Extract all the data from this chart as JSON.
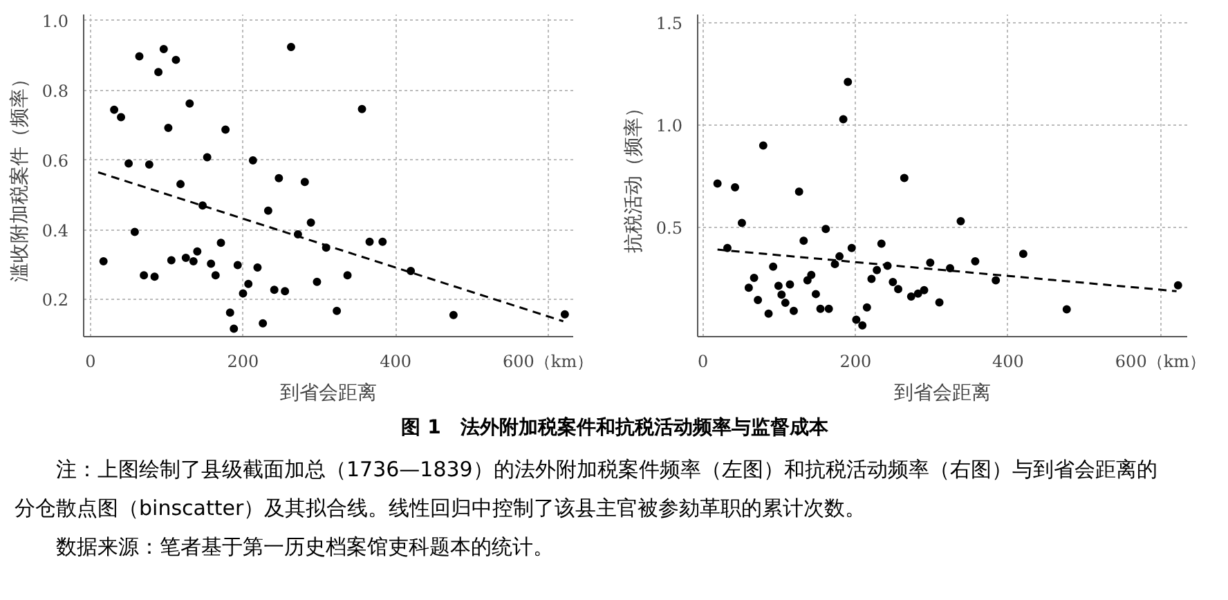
{
  "chart_data": [
    {
      "type": "scatter",
      "xlabel": "到省会距离",
      "ylabel": "滥收附加税案件（频率）",
      "xlim": [
        -9,
        633
      ],
      "ylim": [
        0.094,
        1.017
      ],
      "xticks": [
        0,
        200,
        400,
        {
          "value": 600,
          "label": "600（km）"
        }
      ],
      "yticks": [
        0.2,
        0.4,
        0.6,
        0.8,
        {
          "value": 1.0,
          "label": "1.0"
        }
      ],
      "grid": true,
      "series": [
        {
          "color": "#000000",
          "marker": "circle",
          "x": [
            17,
            31,
            40,
            50,
            58,
            64,
            70,
            77,
            84,
            89,
            96,
            102,
            106,
            112,
            118,
            125,
            130,
            135,
            140,
            147,
            153,
            158,
            164,
            171,
            177,
            183,
            188,
            193,
            200,
            207,
            213,
            219,
            226,
            233,
            241,
            247,
            255,
            263,
            272,
            281,
            289,
            297,
            309,
            323,
            337,
            356,
            366,
            383,
            420,
            476,
            622
          ],
          "values": [
            0.31,
            0.744,
            0.723,
            0.59,
            0.394,
            0.897,
            0.27,
            0.587,
            0.266,
            0.852,
            0.918,
            0.692,
            0.313,
            0.887,
            0.531,
            0.32,
            0.762,
            0.31,
            0.338,
            0.47,
            0.608,
            0.303,
            0.27,
            0.363,
            0.687,
            0.163,
            0.117,
            0.299,
            0.218,
            0.245,
            0.599,
            0.292,
            0.132,
            0.455,
            0.228,
            0.548,
            0.224,
            0.924,
            0.387,
            0.537,
            0.421,
            0.251,
            0.349,
            0.168,
            0.27,
            0.746,
            0.366,
            0.366,
            0.282,
            0.156,
            0.158
          ]
        },
        {
          "type": "line",
          "line_style": "dashed",
          "color": "#000000",
          "x": [
            10,
            620
          ],
          "values": [
            0.565,
            0.138
          ]
        }
      ]
    },
    {
      "type": "scatter",
      "xlabel": "到省会距离",
      "ylabel": "抗税活动（频率）",
      "xlim": [
        -7,
        635
      ],
      "ylim": [
        -0.033,
        1.54
      ],
      "xticks": [
        0,
        200,
        400,
        {
          "value": 600,
          "label": "600（km）"
        }
      ],
      "yticks": [
        0.5,
        {
          "value": 1.0,
          "label": "1.0"
        },
        1.5
      ],
      "grid": true,
      "series": [
        {
          "color": "#000000",
          "marker": "circle",
          "x": [
            19,
            32,
            42,
            51,
            60,
            67,
            72,
            79,
            86,
            92,
            99,
            103,
            108,
            114,
            119,
            126,
            132,
            137,
            142,
            148,
            154,
            161,
            165,
            173,
            179,
            184,
            190,
            195,
            201,
            209,
            215,
            221,
            228,
            234,
            242,
            249,
            256,
            264,
            273,
            282,
            290,
            298,
            310,
            324,
            338,
            357,
            384,
            420,
            477,
            623
          ],
          "values": [
            0.715,
            0.4,
            0.696,
            0.522,
            0.206,
            0.254,
            0.146,
            0.9,
            0.079,
            0.309,
            0.215,
            0.172,
            0.132,
            0.222,
            0.093,
            0.675,
            0.435,
            0.242,
            0.268,
            0.175,
            0.103,
            0.493,
            0.103,
            0.321,
            0.359,
            1.029,
            1.211,
            0.4,
            0.05,
            0.022,
            0.11,
            0.249,
            0.292,
            0.421,
            0.313,
            0.234,
            0.199,
            0.742,
            0.163,
            0.177,
            0.194,
            0.328,
            0.134,
            0.301,
            0.531,
            0.335,
            0.242,
            0.371,
            0.1,
            0.218
          ]
        },
        {
          "type": "line",
          "line_style": "dashed",
          "color": "#000000",
          "x": [
            19,
            621
          ],
          "values": [
            0.392,
            0.189
          ]
        }
      ]
    },
    {
      "type": "other",
      "title": "图 1　法外附加税案件和抗税活动频率与监督成本",
      "annotations": [
        "注：上图绘制了县级截面加总（1736—1839）的法外附加税案件频率（左图）和抗税活动频率（右图）与到省会距离的分仓散点图（binscatter）及其拟合线。线性回归中控制了该县主官被参劾革职的累计次数。",
        "数据来源：笔者基于第一历史档案馆吏科题本的统计。"
      ]
    }
  ]
}
